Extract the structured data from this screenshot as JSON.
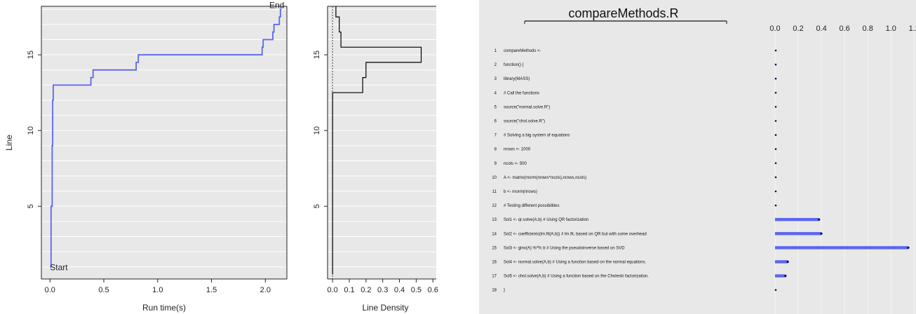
{
  "chart_data": [
    {
      "type": "line",
      "xlabel": "Run time(s)",
      "ylabel": "Line",
      "xlim": [
        -0.08,
        2.2
      ],
      "ylim": [
        0.2,
        18.2
      ],
      "x_ticks": [
        "0.0",
        "0.5",
        "1.0",
        "1.5",
        "2.0"
      ],
      "y_ticks": [
        "5",
        "10",
        "15"
      ],
      "grid": true,
      "line_color": "#5b66f0",
      "annotations": [
        {
          "text": "Start",
          "x": 0.0,
          "y": 1,
          "color": "#e00000"
        },
        {
          "text": "End",
          "x": 2.15,
          "y": 18,
          "color": "#1e7a1e"
        }
      ],
      "highlight_tick": {
        "value": "15",
        "color": "#e00000"
      },
      "points": [
        [
          0.0,
          1
        ],
        [
          0.01,
          1
        ],
        [
          0.01,
          5
        ],
        [
          0.02,
          5
        ],
        [
          0.02,
          9
        ],
        [
          0.025,
          9
        ],
        [
          0.025,
          12
        ],
        [
          0.03,
          12
        ],
        [
          0.03,
          13
        ],
        [
          0.38,
          13
        ],
        [
          0.38,
          13.5
        ],
        [
          0.4,
          13.5
        ],
        [
          0.4,
          14
        ],
        [
          0.8,
          14
        ],
        [
          0.8,
          14.5
        ],
        [
          0.82,
          14.5
        ],
        [
          0.82,
          15
        ],
        [
          1.97,
          15
        ],
        [
          1.97,
          15.5
        ],
        [
          1.98,
          15.5
        ],
        [
          1.98,
          16
        ],
        [
          2.07,
          16
        ],
        [
          2.07,
          16.5
        ],
        [
          2.08,
          16.5
        ],
        [
          2.08,
          17
        ],
        [
          2.13,
          17
        ],
        [
          2.13,
          17.5
        ],
        [
          2.14,
          17.5
        ],
        [
          2.14,
          18
        ],
        [
          2.15,
          18
        ]
      ]
    },
    {
      "type": "area",
      "xlabel": "Line Density",
      "ylabel": "",
      "xlim": [
        -0.03,
        0.62
      ],
      "ylim": [
        0.2,
        18.2
      ],
      "x_ticks": [
        "0.0",
        "0.1",
        "0.2",
        "0.3",
        "0.4",
        "0.5",
        "0.6"
      ],
      "y_ticks": [
        "5",
        "10",
        "15"
      ],
      "grid": true,
      "line_color": "#000000",
      "steps": [
        [
          0.0,
          0.5
        ],
        [
          0.0,
          12.5
        ],
        [
          0.18,
          12.5
        ],
        [
          0.18,
          13.5
        ],
        [
          0.2,
          13.5
        ],
        [
          0.2,
          14.5
        ],
        [
          0.53,
          14.5
        ],
        [
          0.53,
          15.5
        ],
        [
          0.05,
          15.5
        ],
        [
          0.05,
          16.5
        ],
        [
          0.04,
          16.5
        ],
        [
          0.04,
          17.5
        ],
        [
          0.02,
          17.5
        ],
        [
          0.02,
          18.2
        ]
      ]
    },
    {
      "type": "bar",
      "title": "compareMethods.R",
      "xlim": [
        -0.01,
        1.3
      ],
      "x_ticks": [
        "0.0",
        "0.2",
        "0.4",
        "0.6",
        "0.8",
        "1.0",
        "1.2"
      ],
      "bar_color": "#5b66f0",
      "grid": true,
      "rows": [
        {
          "num": "1",
          "code": "compareMethods <-",
          "value": 0.0
        },
        {
          "num": "2",
          "code": "function() {",
          "value": 0.0
        },
        {
          "num": "3",
          "code": "    library(MASS)",
          "value": 0.0
        },
        {
          "num": "4",
          "code": "    # Call the functions",
          "value": 0.0
        },
        {
          "num": "5",
          "code": "    source(\"normal.solve.R\")",
          "value": 0.0
        },
        {
          "num": "6",
          "code": "    source(\"chol.solve.R\")",
          "value": 0.0
        },
        {
          "num": "7",
          "code": "    # Solving a big system of equations",
          "value": 0.0
        },
        {
          "num": "8",
          "code": "    nrows <- 1000",
          "value": 0.0
        },
        {
          "num": "9",
          "code": "    ncols <- 500",
          "value": 0.0
        },
        {
          "num": "10",
          "code": "    A <- matrix(rnorm(nrows*ncols),nrows,ncols)",
          "value": 0.0
        },
        {
          "num": "11",
          "code": "    b <- rnorm(nrows)",
          "value": 0.0
        },
        {
          "num": "12",
          "code": "    # Testing different possibilities",
          "value": 0.0
        },
        {
          "num": "13",
          "code": "    Sol1 <- qr.solve(A,b) # Using QR factorization",
          "value": 0.38
        },
        {
          "num": "14",
          "code": "    Sol2 <- coefficients(lm.fit(A,b)) # lm.fit, based on QR but with some overhead",
          "value": 0.4
        },
        {
          "num": "15",
          "code": "    Sol3 <- ginv(A) %*% b # Using the pseudoinverse based on SVD",
          "value": 1.15
        },
        {
          "num": "16",
          "code": "    Sol4 <- normal.solve(A,b) # Using a function based on the normal equations.",
          "value": 0.11
        },
        {
          "num": "17",
          "code": "    Sol5 <- chol.solve(A,b) # Using a function based on the Choleski factorization.",
          "value": 0.09
        },
        {
          "num": "18",
          "code": "}",
          "value": 0.0
        }
      ]
    }
  ]
}
